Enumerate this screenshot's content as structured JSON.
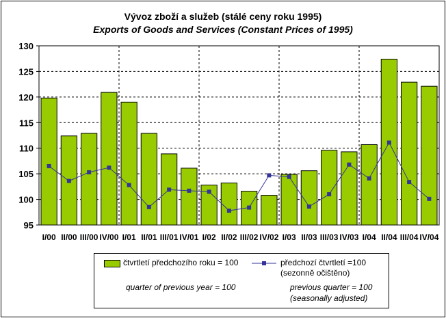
{
  "chart_data": {
    "type": "bar",
    "title": "Vývoz zboží a služeb (stálé ceny roku 1995)",
    "subtitle": "Exports of Goods and Services (Constant Prices of 1995)",
    "categories": [
      "I/00",
      "II/00",
      "III/00",
      "IV/00",
      "I/01",
      "II/01",
      "III/01",
      "IV/01",
      "I/02",
      "II/02",
      "III/02",
      "IV/02",
      "I/03",
      "II/03",
      "III/03",
      "IV/03",
      "I/04",
      "II/04",
      "III/04",
      "IV/04"
    ],
    "ylim": [
      95,
      130
    ],
    "yticks": [
      95,
      100,
      105,
      110,
      115,
      120,
      125,
      130
    ],
    "grid": true,
    "legend_placement": "bottom",
    "series": [
      {
        "name": "čtvrtletí předchozího roku = 100",
        "name_en": "quarter of previous year = 100",
        "type": "bar",
        "color": "#99cc00",
        "values": [
          119.8,
          112.4,
          112.9,
          120.9,
          119.0,
          112.9,
          108.9,
          106.1,
          102.8,
          103.2,
          101.6,
          100.8,
          104.9,
          105.6,
          109.6,
          109.3,
          110.7,
          127.4,
          122.9,
          122.1
        ]
      },
      {
        "name": "předchozí čtvrtletí =100",
        "name_note": "(sezonně očištěno)",
        "name_en": "previous quarter = 100",
        "name_en_note": "(seasonally adjusted)",
        "type": "line",
        "color": "#333399",
        "values": [
          106.5,
          103.6,
          105.3,
          106.2,
          102.8,
          98.5,
          101.9,
          101.7,
          101.5,
          97.8,
          98.4,
          104.7,
          104.4,
          98.6,
          101.0,
          106.8,
          104.1,
          111.1,
          103.4,
          100.1
        ]
      }
    ]
  }
}
